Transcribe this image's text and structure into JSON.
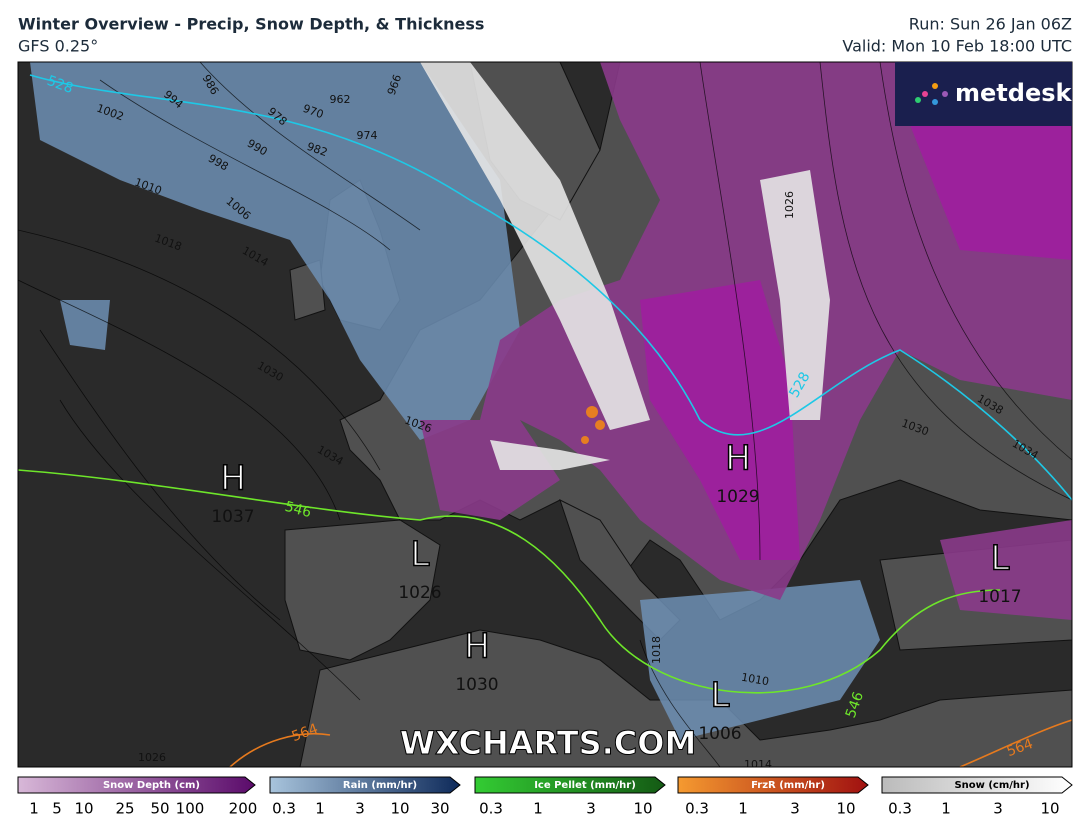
{
  "header": {
    "title": "Winter Overview - Precip, Snow Depth, & Thickness",
    "subtitle": "GFS 0.25°",
    "run": "Run: Sun 26 Jan 06Z",
    "valid": "Valid: Mon 10 Feb 18:00 UTC"
  },
  "logo": "metdesk",
  "watermark": "WXCHARTS.COM",
  "pressure_centers": [
    {
      "kind": "H",
      "value": "1037"
    },
    {
      "kind": "L",
      "value": "1026"
    },
    {
      "kind": "H",
      "value": "1030"
    },
    {
      "kind": "H",
      "value": "1029"
    },
    {
      "kind": "L",
      "value": "1017"
    },
    {
      "kind": "L",
      "value": "1006"
    }
  ],
  "isobar_labels": [
    "986",
    "994",
    "1002",
    "962",
    "970",
    "978",
    "966",
    "974",
    "982",
    "990",
    "998",
    "1010",
    "1006",
    "1018",
    "1014",
    "1030",
    "1026",
    "1034",
    "1026",
    "1038",
    "1030",
    "1034",
    "1018",
    "1010",
    "1014",
    "1026"
  ],
  "thickness_labels": [
    "528",
    "528",
    "546",
    "546",
    "564",
    "564"
  ],
  "legend": [
    {
      "title": "Snow Depth (cm)",
      "ticks": [
        1,
        5,
        10,
        25,
        50,
        100,
        200
      ]
    },
    {
      "title": "Rain (mm/hr)",
      "ticks": [
        0.3,
        1,
        3,
        10,
        30
      ]
    },
    {
      "title": "Ice Pellet (mm/hr)",
      "ticks": [
        0.3,
        1,
        3,
        10
      ]
    },
    {
      "title": "FrzR (mm/hr)",
      "ticks": [
        0.3,
        1,
        3,
        10
      ]
    },
    {
      "title": "Snow (cm/hr)",
      "ticks": [
        0.3,
        1,
        3,
        10
      ]
    }
  ]
}
